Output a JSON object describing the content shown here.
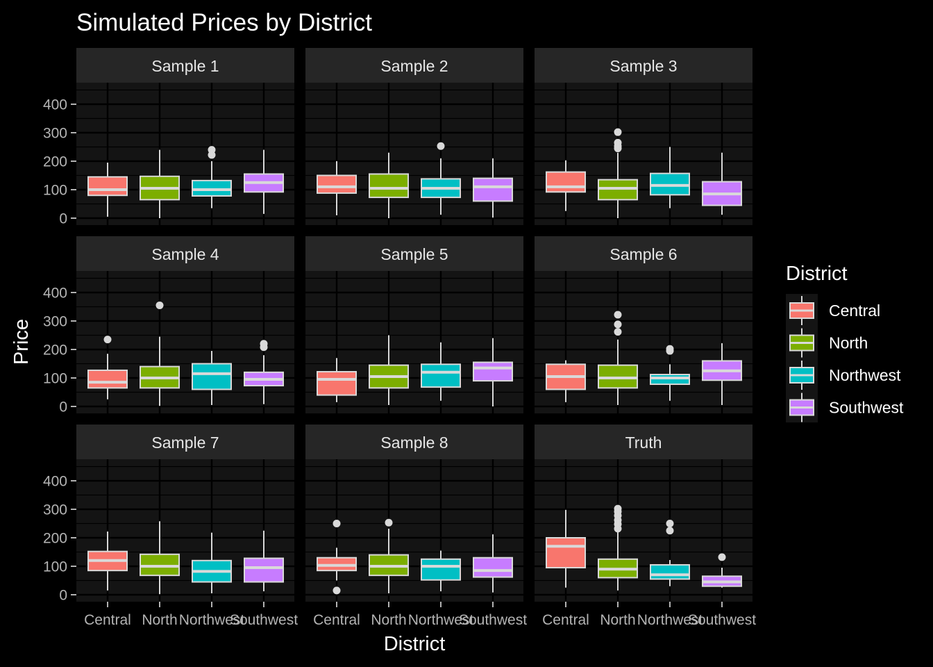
{
  "chart_data": {
    "type": "box",
    "title": "Simulated Prices by District",
    "xlabel": "District",
    "ylabel": "Price",
    "categories": [
      "Central",
      "North",
      "Northwest",
      "Southwest"
    ],
    "y_ticks": [
      0,
      100,
      200,
      300,
      400
    ],
    "ylim": [
      -20,
      480
    ],
    "legend": {
      "title": "District",
      "position": "right",
      "entries": [
        "Central",
        "North",
        "Northwest",
        "Southwest"
      ]
    },
    "colors": {
      "Central": "#F8766D",
      "North": "#7CAE00",
      "Northwest": "#00BFC4",
      "Southwest": "#C77CFF",
      "background": "#000000",
      "panel": "#141414",
      "strip": "#262626",
      "box_line": "#d9d9d9"
    },
    "facets": [
      {
        "label": "Sample 1",
        "boxes": [
          {
            "min": 5,
            "q1": 80,
            "median": 100,
            "q3": 145,
            "max": 195,
            "outliers": []
          },
          {
            "min": 0,
            "q1": 65,
            "median": 105,
            "q3": 147,
            "max": 240,
            "outliers": []
          },
          {
            "min": 35,
            "q1": 78,
            "median": 100,
            "q3": 132,
            "max": 200,
            "outliers": [
              222,
              240
            ]
          },
          {
            "min": 15,
            "q1": 92,
            "median": 125,
            "q3": 155,
            "max": 240,
            "outliers": []
          }
        ]
      },
      {
        "label": "Sample 2",
        "boxes": [
          {
            "min": 10,
            "q1": 88,
            "median": 110,
            "q3": 150,
            "max": 200,
            "outliers": []
          },
          {
            "min": 0,
            "q1": 73,
            "median": 105,
            "q3": 155,
            "max": 230,
            "outliers": []
          },
          {
            "min": 12,
            "q1": 73,
            "median": 105,
            "q3": 138,
            "max": 210,
            "outliers": [
              253
            ]
          },
          {
            "min": 2,
            "q1": 60,
            "median": 110,
            "q3": 140,
            "max": 210,
            "outliers": []
          }
        ]
      },
      {
        "label": "Sample 3",
        "boxes": [
          {
            "min": 25,
            "q1": 92,
            "median": 110,
            "q3": 162,
            "max": 203,
            "outliers": []
          },
          {
            "min": 0,
            "q1": 65,
            "median": 105,
            "q3": 135,
            "max": 230,
            "outliers": [
              245,
              253,
              265,
              302
            ]
          },
          {
            "min": 35,
            "q1": 82,
            "median": 115,
            "q3": 157,
            "max": 250,
            "outliers": []
          },
          {
            "min": 12,
            "q1": 45,
            "median": 85,
            "q3": 128,
            "max": 230,
            "outliers": []
          }
        ]
      },
      {
        "label": "Sample 4",
        "boxes": [
          {
            "min": 25,
            "q1": 65,
            "median": 85,
            "q3": 127,
            "max": 185,
            "outliers": [
              235
            ]
          },
          {
            "min": 2,
            "q1": 65,
            "median": 100,
            "q3": 140,
            "max": 245,
            "outliers": [
              355
            ]
          },
          {
            "min": 5,
            "q1": 60,
            "median": 115,
            "q3": 150,
            "max": 195,
            "outliers": []
          },
          {
            "min": 8,
            "q1": 73,
            "median": 95,
            "q3": 120,
            "max": 180,
            "outliers": [
              208,
              220
            ]
          }
        ]
      },
      {
        "label": "Sample 5",
        "boxes": [
          {
            "min": 15,
            "q1": 40,
            "median": 95,
            "q3": 122,
            "max": 170,
            "outliers": []
          },
          {
            "min": 5,
            "q1": 65,
            "median": 105,
            "q3": 145,
            "max": 250,
            "outliers": []
          },
          {
            "min": 20,
            "q1": 68,
            "median": 120,
            "q3": 148,
            "max": 225,
            "outliers": []
          },
          {
            "min": 0,
            "q1": 90,
            "median": 135,
            "q3": 155,
            "max": 240,
            "outliers": []
          }
        ]
      },
      {
        "label": "Sample 6",
        "boxes": [
          {
            "min": 15,
            "q1": 60,
            "median": 105,
            "q3": 148,
            "max": 162,
            "outliers": []
          },
          {
            "min": 5,
            "q1": 65,
            "median": 100,
            "q3": 145,
            "max": 235,
            "outliers": [
              262,
              288,
              322
            ]
          },
          {
            "min": 20,
            "q1": 78,
            "median": 100,
            "q3": 112,
            "max": 148,
            "outliers": [
              195,
              202
            ]
          },
          {
            "min": 5,
            "q1": 92,
            "median": 125,
            "q3": 160,
            "max": 222,
            "outliers": []
          }
        ]
      },
      {
        "label": "Sample 7",
        "boxes": [
          {
            "min": 15,
            "q1": 85,
            "median": 120,
            "q3": 152,
            "max": 222,
            "outliers": []
          },
          {
            "min": 2,
            "q1": 68,
            "median": 100,
            "q3": 142,
            "max": 258,
            "outliers": []
          },
          {
            "min": 5,
            "q1": 45,
            "median": 82,
            "q3": 120,
            "max": 218,
            "outliers": []
          },
          {
            "min": 12,
            "q1": 45,
            "median": 95,
            "q3": 128,
            "max": 225,
            "outliers": []
          }
        ]
      },
      {
        "label": "Sample 8",
        "boxes": [
          {
            "min": 50,
            "q1": 85,
            "median": 103,
            "q3": 130,
            "max": 165,
            "outliers": [
              250,
              15
            ]
          },
          {
            "min": 5,
            "q1": 68,
            "median": 100,
            "q3": 140,
            "max": 232,
            "outliers": [
              253
            ]
          },
          {
            "min": 12,
            "q1": 52,
            "median": 100,
            "q3": 125,
            "max": 155,
            "outliers": []
          },
          {
            "min": 8,
            "q1": 62,
            "median": 85,
            "q3": 130,
            "max": 212,
            "outliers": []
          }
        ]
      },
      {
        "label": "Truth",
        "boxes": [
          {
            "min": 25,
            "q1": 95,
            "median": 170,
            "q3": 200,
            "max": 298,
            "outliers": []
          },
          {
            "min": 15,
            "q1": 60,
            "median": 90,
            "q3": 125,
            "max": 220,
            "outliers": [
              232,
              248,
              262,
              278,
              292,
              302
            ]
          },
          {
            "min": 30,
            "q1": 55,
            "median": 70,
            "q3": 105,
            "max": 122,
            "outliers": [
              225,
              250
            ]
          },
          {
            "min": 25,
            "q1": 30,
            "median": 45,
            "q3": 65,
            "max": 95,
            "outliers": [
              132
            ]
          }
        ]
      }
    ]
  }
}
